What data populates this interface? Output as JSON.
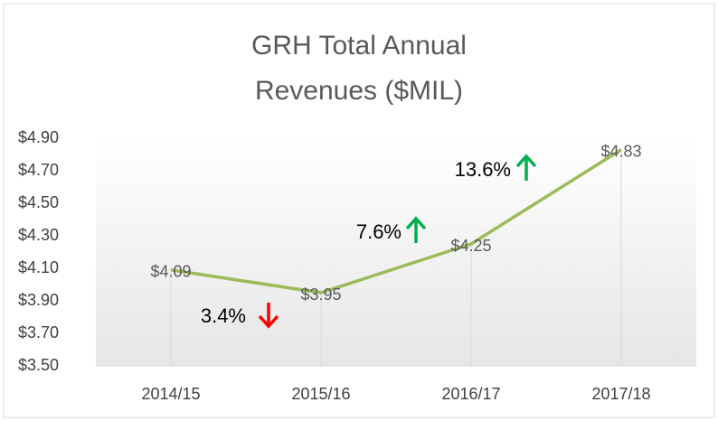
{
  "chart_data": {
    "type": "line",
    "title": "GRH Total Annual Revenues ($MIL)",
    "categories": [
      "2014/15",
      "2015/16",
      "2016/17",
      "2017/18"
    ],
    "series": [
      {
        "name": "Revenues",
        "color": "#9bbb59",
        "values": [
          4.09,
          3.95,
          4.25,
          4.83
        ],
        "value_labels": [
          "$4.09",
          "$3.95",
          "$4.25",
          "$4.83"
        ]
      }
    ],
    "ylim": [
      3.5,
      4.9
    ],
    "yticks": [
      {
        "value": 3.5,
        "label": "$3.50"
      },
      {
        "value": 3.7,
        "label": "$3.70"
      },
      {
        "value": 3.9,
        "label": "$3.90"
      },
      {
        "value": 4.1,
        "label": "$4.10"
      },
      {
        "value": 4.3,
        "label": "$4.30"
      },
      {
        "value": 4.5,
        "label": "$4.50"
      },
      {
        "value": 4.7,
        "label": "$4.70"
      },
      {
        "value": 4.9,
        "label": "$4.90"
      }
    ],
    "annotations": [
      "3.4%",
      "7.6%",
      "13.6%"
    ]
  }
}
